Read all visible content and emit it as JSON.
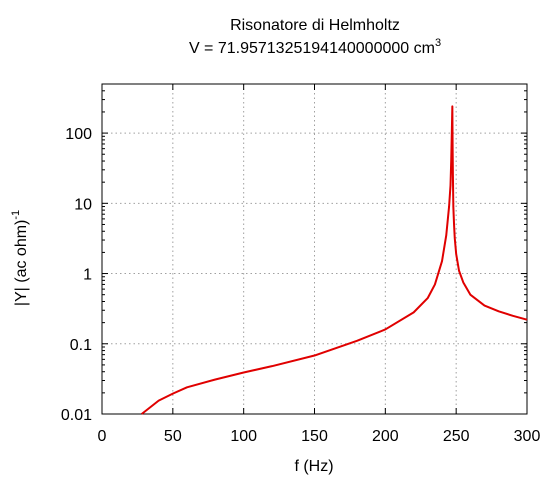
{
  "chart_data": {
    "type": "line",
    "title": "Risonatore di Helmholtz",
    "subtitle_prefix": "V = 71.9571325194140000000 cm",
    "subtitle_sup": "3",
    "xlabel": "f (Hz)",
    "ylabel_prefix": "|Y| (ac ohm)",
    "ylabel_sup": "-1",
    "xlim": [
      0,
      300
    ],
    "ylim": [
      0.01,
      500
    ],
    "yscale": "log",
    "grid": true,
    "x_ticks": [
      "0",
      "50",
      "100",
      "150",
      "200",
      "250",
      "300"
    ],
    "y_ticks": [
      {
        "value": 0.01,
        "label": "0.01"
      },
      {
        "value": 0.1,
        "label": "0.1"
      },
      {
        "value": 1,
        "label": "1"
      },
      {
        "value": 10,
        "label": "10"
      },
      {
        "value": 100,
        "label": "100"
      }
    ],
    "series": [
      {
        "color": "#e00000",
        "x": [
          28,
          40,
          50,
          60,
          80,
          100,
          120,
          150,
          180,
          200,
          220,
          230,
          235,
          240,
          243,
          245,
          246,
          246.5,
          247,
          247.3,
          247.5,
          247.7,
          248,
          248.5,
          249,
          250,
          252,
          255,
          260,
          270,
          280,
          290,
          300
        ],
        "y": [
          0.01,
          0.0155,
          0.0195,
          0.024,
          0.031,
          0.039,
          0.048,
          0.068,
          0.11,
          0.16,
          0.28,
          0.45,
          0.7,
          1.5,
          3.5,
          9,
          18,
          40,
          120,
          240,
          60,
          25,
          9,
          5,
          3.2,
          1.9,
          1.1,
          0.75,
          0.5,
          0.35,
          0.29,
          0.25,
          0.22
        ]
      }
    ]
  }
}
